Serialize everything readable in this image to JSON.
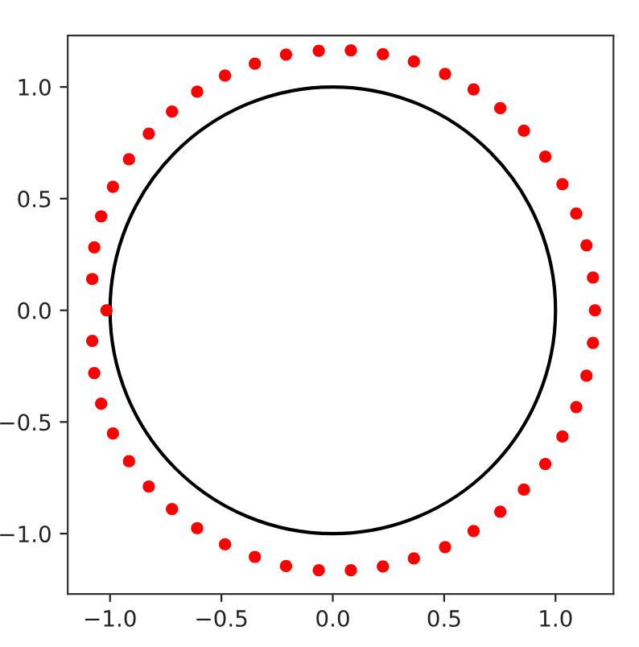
{
  "chart_data": {
    "type": "scatter",
    "series": [
      {
        "color": "#ff0000",
        "x": [
          -1.016,
          -1.08,
          -1.071,
          -1.04,
          -0.987,
          -0.915,
          -0.826,
          -0.722,
          -0.609,
          -0.484,
          -0.35,
          -0.21,
          -0.063,
          0.081,
          0.225,
          0.364,
          0.504,
          0.632,
          0.752,
          0.858,
          0.954,
          1.031,
          1.093,
          1.139,
          1.168,
          1.177,
          1.168,
          1.139,
          1.093,
          1.031,
          0.954,
          0.858,
          0.752,
          0.632,
          0.504,
          0.364,
          0.225,
          0.081,
          -0.063,
          -0.21,
          -0.35,
          -0.484,
          -0.609,
          -0.722,
          -0.826,
          -0.915,
          -0.987,
          -1.04,
          -1.071,
          -1.08
        ],
        "values": [
          0,
          0.14,
          0.282,
          0.421,
          0.553,
          0.676,
          0.791,
          0.89,
          0.979,
          1.051,
          1.104,
          1.145,
          1.162,
          1.164,
          1.147,
          1.114,
          1.058,
          0.989,
          0.905,
          0.804,
          0.688,
          0.565,
          0.433,
          0.291,
          0.147,
          0,
          -0.146,
          -0.293,
          -0.433,
          -0.565,
          -0.688,
          -0.803,
          -0.902,
          -0.988,
          -1.06,
          -1.111,
          -1.147,
          -1.164,
          -1.164,
          -1.145,
          -1.104,
          -1.048,
          -0.976,
          -0.89,
          -0.789,
          -0.676,
          -0.551,
          -0.418,
          -0.281,
          -0.137
        ]
      }
    ],
    "xlim": [
      -1.19,
      1.26
    ],
    "ylim": [
      -1.27,
      1.23
    ],
    "xticks": [
      {
        "value": -1.0,
        "label": "−1.0"
      },
      {
        "value": -0.5,
        "label": "−0.5"
      },
      {
        "value": 0.0,
        "label": "0.0"
      },
      {
        "value": 0.5,
        "label": "0.5"
      },
      {
        "value": 1.0,
        "label": "1.0"
      }
    ],
    "yticks": [
      {
        "value": -1.0,
        "label": "−1.0"
      },
      {
        "value": -0.5,
        "label": "−0.5"
      },
      {
        "value": 0.0,
        "label": "0.0"
      },
      {
        "value": 0.5,
        "label": "0.5"
      },
      {
        "value": 1.0,
        "label": "1.0"
      }
    ],
    "marker": "circle",
    "grid": false,
    "legend": false
  }
}
